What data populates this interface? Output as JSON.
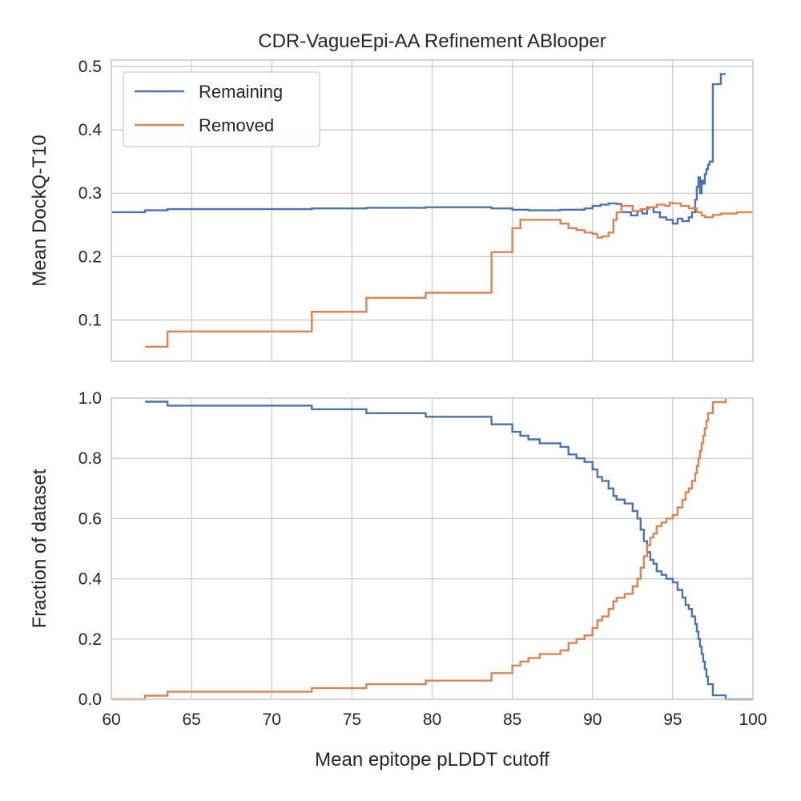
{
  "chart_data": [
    {
      "type": "line",
      "title": "CDR-VagueEpi-AA Refinement ABlooper",
      "xlabel": "",
      "ylabel": "Mean DockQ-T10",
      "xlim": [
        60,
        100
      ],
      "ylim": [
        0.035,
        0.51
      ],
      "xticks": [
        60,
        65,
        70,
        75,
        80,
        85,
        90,
        95,
        100
      ],
      "xticklabels_visible": false,
      "yticks": [
        0.1,
        0.2,
        0.3,
        0.4,
        0.5
      ],
      "yticklabels": [
        "0.1",
        "0.2",
        "0.3",
        "0.4",
        "0.5"
      ],
      "grid": true,
      "legend": {
        "position": "top-left",
        "entries": [
          "Remaining",
          "Removed"
        ]
      },
      "series": [
        {
          "name": "Remaining",
          "color": "#4c72b0",
          "step": true,
          "x": [
            60,
            62.1,
            63.5,
            72.5,
            75.9,
            79.6,
            83.7,
            85.0,
            86.0,
            88.0,
            89.5,
            90.0,
            90.5,
            91.0,
            91.5,
            91.8,
            92.4,
            92.8,
            93.1,
            93.4,
            93.8,
            94.2,
            94.6,
            95.0,
            95.3,
            95.6,
            96.0,
            96.2,
            96.4,
            96.5,
            96.6,
            96.7,
            96.8,
            96.9,
            97.0,
            97.1,
            97.2,
            97.3,
            97.5,
            97.8,
            98.0,
            98.3
          ],
          "y": [
            0.27,
            0.273,
            0.275,
            0.276,
            0.277,
            0.278,
            0.276,
            0.274,
            0.273,
            0.274,
            0.276,
            0.28,
            0.282,
            0.284,
            0.283,
            0.27,
            0.265,
            0.272,
            0.268,
            0.278,
            0.27,
            0.262,
            0.258,
            0.252,
            0.26,
            0.256,
            0.262,
            0.27,
            0.29,
            0.31,
            0.325,
            0.3,
            0.32,
            0.315,
            0.33,
            0.338,
            0.345,
            0.35,
            0.472,
            0.472,
            0.488,
            0.488
          ]
        },
        {
          "name": "Removed",
          "color": "#dd8452",
          "step": true,
          "x": [
            62.1,
            63.5,
            72.5,
            75.9,
            79.6,
            83.7,
            85.0,
            85.5,
            86.0,
            88.0,
            88.5,
            89.0,
            89.5,
            90.0,
            90.3,
            90.6,
            91.0,
            91.3,
            91.5,
            91.8,
            92.0,
            92.5,
            93.0,
            93.5,
            94.0,
            94.5,
            94.8,
            95.0,
            95.5,
            96.0,
            96.5,
            96.8,
            97.0,
            97.5,
            98.0,
            99.0,
            100.0
          ],
          "y": [
            0.058,
            0.082,
            0.113,
            0.135,
            0.143,
            0.207,
            0.245,
            0.258,
            0.258,
            0.252,
            0.245,
            0.242,
            0.238,
            0.236,
            0.23,
            0.232,
            0.238,
            0.258,
            0.27,
            0.28,
            0.28,
            0.272,
            0.275,
            0.278,
            0.282,
            0.28,
            0.285,
            0.284,
            0.28,
            0.276,
            0.27,
            0.265,
            0.262,
            0.266,
            0.268,
            0.27,
            0.27
          ]
        }
      ]
    },
    {
      "type": "line",
      "title": "",
      "xlabel": "Mean epitope pLDDT cutoff",
      "ylabel": "Fraction of dataset",
      "xlim": [
        60,
        100
      ],
      "ylim": [
        0.0,
        1.0
      ],
      "xticks": [
        60,
        65,
        70,
        75,
        80,
        85,
        90,
        95,
        100
      ],
      "xticklabels": [
        "60",
        "65",
        "70",
        "75",
        "80",
        "85",
        "90",
        "95",
        "100"
      ],
      "yticks": [
        0.0,
        0.2,
        0.4,
        0.6,
        0.8,
        1.0
      ],
      "yticklabels": [
        "0.0",
        "0.2",
        "0.4",
        "0.6",
        "0.8",
        "1.0"
      ],
      "grid": true,
      "series": [
        {
          "name": "Remaining",
          "color": "#4c72b0",
          "step": true,
          "x": [
            62.1,
            63.5,
            72.5,
            75.9,
            79.6,
            83.7,
            85.0,
            85.5,
            86.0,
            86.7,
            88.0,
            88.5,
            89.0,
            89.5,
            90.0,
            90.3,
            90.6,
            91.0,
            91.3,
            91.5,
            92.0,
            92.5,
            92.8,
            93.0,
            93.2,
            93.4,
            93.6,
            93.8,
            94.0,
            94.3,
            94.6,
            95.0,
            95.3,
            95.6,
            95.8,
            96.0,
            96.2,
            96.4,
            96.5,
            96.6,
            96.7,
            96.8,
            96.9,
            97.0,
            97.1,
            97.2,
            97.5,
            98.0,
            98.3,
            100.0
          ],
          "y": [
            0.988,
            0.975,
            0.963,
            0.95,
            0.938,
            0.913,
            0.888,
            0.875,
            0.863,
            0.85,
            0.838,
            0.813,
            0.8,
            0.788,
            0.763,
            0.738,
            0.725,
            0.7,
            0.675,
            0.663,
            0.65,
            0.625,
            0.6,
            0.563,
            0.525,
            0.488,
            0.463,
            0.45,
            0.425,
            0.413,
            0.4,
            0.388,
            0.363,
            0.338,
            0.313,
            0.3,
            0.275,
            0.25,
            0.225,
            0.2,
            0.175,
            0.15,
            0.125,
            0.1,
            0.075,
            0.05,
            0.013,
            0.013,
            0.0,
            0.0
          ]
        },
        {
          "name": "Removed",
          "color": "#dd8452",
          "step": true,
          "x": [
            60,
            62.1,
            63.5,
            72.5,
            75.9,
            79.6,
            83.7,
            85.0,
            85.5,
            86.0,
            86.7,
            88.0,
            88.5,
            89.0,
            89.5,
            90.0,
            90.3,
            90.6,
            91.0,
            91.3,
            91.5,
            92.0,
            92.5,
            92.8,
            93.0,
            93.2,
            93.4,
            93.6,
            93.8,
            94.0,
            94.3,
            94.6,
            95.0,
            95.3,
            95.6,
            95.8,
            96.0,
            96.2,
            96.4,
            96.5,
            96.6,
            96.7,
            96.8,
            96.9,
            97.0,
            97.1,
            97.2,
            97.5,
            98.0,
            98.3
          ],
          "y": [
            0.0,
            0.012,
            0.025,
            0.037,
            0.05,
            0.062,
            0.087,
            0.112,
            0.125,
            0.137,
            0.15,
            0.162,
            0.187,
            0.2,
            0.212,
            0.237,
            0.262,
            0.275,
            0.3,
            0.325,
            0.337,
            0.35,
            0.375,
            0.4,
            0.437,
            0.475,
            0.512,
            0.537,
            0.55,
            0.575,
            0.587,
            0.6,
            0.612,
            0.637,
            0.662,
            0.687,
            0.7,
            0.725,
            0.75,
            0.775,
            0.8,
            0.825,
            0.85,
            0.875,
            0.9,
            0.925,
            0.95,
            0.987,
            0.987,
            1.0
          ]
        }
      ]
    }
  ]
}
